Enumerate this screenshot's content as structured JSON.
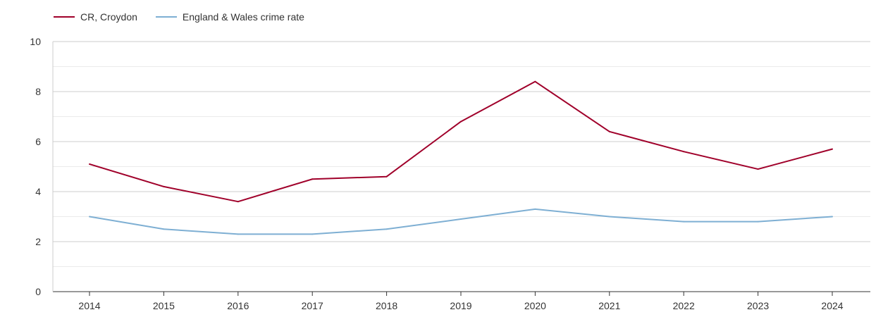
{
  "legend": {
    "series_0": "CR, Croydon",
    "series_1": "England & Wales crime rate"
  },
  "colors": {
    "series_0": "#a0002a",
    "series_1": "#7eafd3",
    "grid_major": "#cccccc",
    "grid_minor": "#ebebeb",
    "axis": "#333333"
  },
  "chart_data": {
    "type": "line",
    "title": "",
    "xlabel": "",
    "ylabel": "",
    "categories": [
      "2014",
      "2015",
      "2016",
      "2017",
      "2018",
      "2019",
      "2020",
      "2021",
      "2022",
      "2023",
      "2024"
    ],
    "yticks": [
      "0",
      "2",
      "4",
      "6",
      "8",
      "10"
    ],
    "ylim": [
      0,
      10
    ],
    "grid": true,
    "legend_position": "top-left",
    "series": [
      {
        "name": "CR, Croydon",
        "values": [
          5.1,
          4.2,
          3.6,
          4.5,
          4.6,
          6.8,
          8.4,
          6.4,
          5.6,
          4.9,
          5.7
        ]
      },
      {
        "name": "England & Wales crime rate",
        "values": [
          3.0,
          2.5,
          2.3,
          2.3,
          2.5,
          2.9,
          3.3,
          3.0,
          2.8,
          2.8,
          3.0
        ]
      }
    ]
  }
}
